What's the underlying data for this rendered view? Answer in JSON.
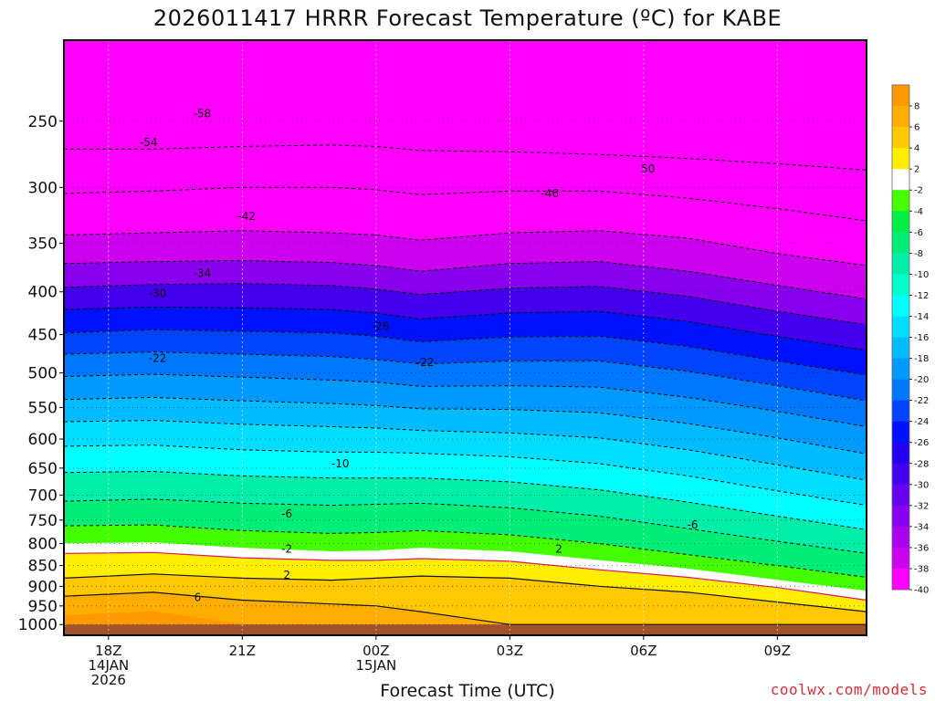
{
  "chart_data": {
    "type": "heatmap",
    "title": "2026011417 HRRR Forecast Temperature (ºC) for KABE",
    "xlabel": "Forecast Time (UTC)",
    "ylabel": "",
    "credit": "coolwx.com/models",
    "x_ticks": [
      {
        "lines": [
          "18Z",
          "14JAN",
          "2026"
        ]
      },
      {
        "lines": [
          "21Z"
        ]
      },
      {
        "lines": [
          "00Z",
          "15JAN"
        ]
      },
      {
        "lines": [
          "03Z"
        ]
      },
      {
        "lines": [
          "06Z"
        ]
      },
      {
        "lines": [
          "09Z"
        ]
      }
    ],
    "x_hours": [
      0,
      3,
      6,
      9,
      12,
      15
    ],
    "x_range_hours": [
      -1,
      17
    ],
    "y_levels_hpa": [
      250,
      300,
      350,
      400,
      450,
      500,
      550,
      600,
      650,
      700,
      750,
      800,
      850,
      900,
      950,
      1000
    ],
    "y_scale": "log pressure",
    "y_range_hpa": [
      200,
      1030
    ],
    "colorbar_labels": [
      "8",
      "6",
      "4",
      "2",
      "-2",
      "-4",
      "-6",
      "-8",
      "-10",
      "-12",
      "-14",
      "-16",
      "-18",
      "-20",
      "-22",
      "-24",
      "-26",
      "-28",
      "-30",
      "-32",
      "-34",
      "-36",
      "-38",
      "-40"
    ],
    "colorbar_colors": [
      "#ff9900",
      "#ffad00",
      "#ffc800",
      "#ffee00",
      "#ffffff",
      "#44ff00",
      "#00ee44",
      "#00ee77",
      "#00eeaa",
      "#00ffcc",
      "#00ffff",
      "#00ddff",
      "#00bbff",
      "#0099ff",
      "#0077ff",
      "#0044ff",
      "#0011ff",
      "#2200ee",
      "#4400ee",
      "#6600ee",
      "#8800ee",
      "#aa00ee",
      "#cc00ee",
      "#ff00ff"
    ],
    "ground_color": "#a0522d",
    "contour_labels": [
      {
        "text": "-58",
        "hour": 2.1,
        "hpa": 245
      },
      {
        "text": "-54",
        "hour": 0.9,
        "hpa": 265
      },
      {
        "text": "50",
        "hour": 12.1,
        "hpa": 285
      },
      {
        "text": "-46",
        "hour": 9.9,
        "hpa": 305
      },
      {
        "text": "-42",
        "hour": 3.1,
        "hpa": 325
      },
      {
        "text": "-34",
        "hour": 2.1,
        "hpa": 380
      },
      {
        "text": "-30",
        "hour": 1.1,
        "hpa": 402
      },
      {
        "text": "-26",
        "hour": 6.1,
        "hpa": 440
      },
      {
        "text": "-22",
        "hour": 1.1,
        "hpa": 480
      },
      {
        "text": "-22",
        "hour": 7.1,
        "hpa": 486
      },
      {
        "text": "-10",
        "hour": 5.2,
        "hpa": 642
      },
      {
        "text": "-6",
        "hour": 4.0,
        "hpa": 737
      },
      {
        "text": "-6",
        "hour": 13.1,
        "hpa": 760
      },
      {
        "text": "-2",
        "hour": 4.0,
        "hpa": 812
      },
      {
        "text": "2",
        "hour": 10.1,
        "hpa": 812
      },
      {
        "text": "2",
        "hour": 4.0,
        "hpa": 872
      },
      {
        "text": "6",
        "hour": 2.0,
        "hpa": 928
      }
    ]
  }
}
